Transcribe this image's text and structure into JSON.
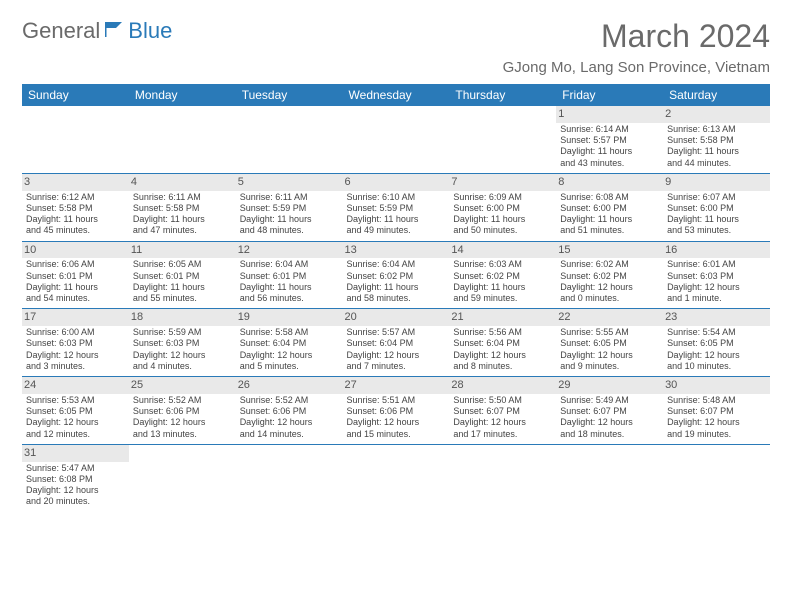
{
  "logo": {
    "general": "General",
    "blue": "Blue"
  },
  "title": "March 2024",
  "location": "GJong Mo, Lang Son Province, Vietnam",
  "colors": {
    "header_bg": "#2a7ab8",
    "header_text": "#ffffff",
    "daynum_bg": "#e9e9e9",
    "cell_border": "#2a7ab8",
    "text": "#444444",
    "title_color": "#6a6a6a"
  },
  "weekdays": [
    "Sunday",
    "Monday",
    "Tuesday",
    "Wednesday",
    "Thursday",
    "Friday",
    "Saturday"
  ],
  "grid": [
    [
      {
        "day": "",
        "lines": [
          "",
          "",
          "",
          ""
        ]
      },
      {
        "day": "",
        "lines": [
          "",
          "",
          "",
          ""
        ]
      },
      {
        "day": "",
        "lines": [
          "",
          "",
          "",
          ""
        ]
      },
      {
        "day": "",
        "lines": [
          "",
          "",
          "",
          ""
        ]
      },
      {
        "day": "",
        "lines": [
          "",
          "",
          "",
          ""
        ]
      },
      {
        "day": "1",
        "lines": [
          "Sunrise: 6:14 AM",
          "Sunset: 5:57 PM",
          "Daylight: 11 hours",
          "and 43 minutes."
        ]
      },
      {
        "day": "2",
        "lines": [
          "Sunrise: 6:13 AM",
          "Sunset: 5:58 PM",
          "Daylight: 11 hours",
          "and 44 minutes."
        ]
      }
    ],
    [
      {
        "day": "3",
        "lines": [
          "Sunrise: 6:12 AM",
          "Sunset: 5:58 PM",
          "Daylight: 11 hours",
          "and 45 minutes."
        ]
      },
      {
        "day": "4",
        "lines": [
          "Sunrise: 6:11 AM",
          "Sunset: 5:58 PM",
          "Daylight: 11 hours",
          "and 47 minutes."
        ]
      },
      {
        "day": "5",
        "lines": [
          "Sunrise: 6:11 AM",
          "Sunset: 5:59 PM",
          "Daylight: 11 hours",
          "and 48 minutes."
        ]
      },
      {
        "day": "6",
        "lines": [
          "Sunrise: 6:10 AM",
          "Sunset: 5:59 PM",
          "Daylight: 11 hours",
          "and 49 minutes."
        ]
      },
      {
        "day": "7",
        "lines": [
          "Sunrise: 6:09 AM",
          "Sunset: 6:00 PM",
          "Daylight: 11 hours",
          "and 50 minutes."
        ]
      },
      {
        "day": "8",
        "lines": [
          "Sunrise: 6:08 AM",
          "Sunset: 6:00 PM",
          "Daylight: 11 hours",
          "and 51 minutes."
        ]
      },
      {
        "day": "9",
        "lines": [
          "Sunrise: 6:07 AM",
          "Sunset: 6:00 PM",
          "Daylight: 11 hours",
          "and 53 minutes."
        ]
      }
    ],
    [
      {
        "day": "10",
        "lines": [
          "Sunrise: 6:06 AM",
          "Sunset: 6:01 PM",
          "Daylight: 11 hours",
          "and 54 minutes."
        ]
      },
      {
        "day": "11",
        "lines": [
          "Sunrise: 6:05 AM",
          "Sunset: 6:01 PM",
          "Daylight: 11 hours",
          "and 55 minutes."
        ]
      },
      {
        "day": "12",
        "lines": [
          "Sunrise: 6:04 AM",
          "Sunset: 6:01 PM",
          "Daylight: 11 hours",
          "and 56 minutes."
        ]
      },
      {
        "day": "13",
        "lines": [
          "Sunrise: 6:04 AM",
          "Sunset: 6:02 PM",
          "Daylight: 11 hours",
          "and 58 minutes."
        ]
      },
      {
        "day": "14",
        "lines": [
          "Sunrise: 6:03 AM",
          "Sunset: 6:02 PM",
          "Daylight: 11 hours",
          "and 59 minutes."
        ]
      },
      {
        "day": "15",
        "lines": [
          "Sunrise: 6:02 AM",
          "Sunset: 6:02 PM",
          "Daylight: 12 hours",
          "and 0 minutes."
        ]
      },
      {
        "day": "16",
        "lines": [
          "Sunrise: 6:01 AM",
          "Sunset: 6:03 PM",
          "Daylight: 12 hours",
          "and 1 minute."
        ]
      }
    ],
    [
      {
        "day": "17",
        "lines": [
          "Sunrise: 6:00 AM",
          "Sunset: 6:03 PM",
          "Daylight: 12 hours",
          "and 3 minutes."
        ]
      },
      {
        "day": "18",
        "lines": [
          "Sunrise: 5:59 AM",
          "Sunset: 6:03 PM",
          "Daylight: 12 hours",
          "and 4 minutes."
        ]
      },
      {
        "day": "19",
        "lines": [
          "Sunrise: 5:58 AM",
          "Sunset: 6:04 PM",
          "Daylight: 12 hours",
          "and 5 minutes."
        ]
      },
      {
        "day": "20",
        "lines": [
          "Sunrise: 5:57 AM",
          "Sunset: 6:04 PM",
          "Daylight: 12 hours",
          "and 7 minutes."
        ]
      },
      {
        "day": "21",
        "lines": [
          "Sunrise: 5:56 AM",
          "Sunset: 6:04 PM",
          "Daylight: 12 hours",
          "and 8 minutes."
        ]
      },
      {
        "day": "22",
        "lines": [
          "Sunrise: 5:55 AM",
          "Sunset: 6:05 PM",
          "Daylight: 12 hours",
          "and 9 minutes."
        ]
      },
      {
        "day": "23",
        "lines": [
          "Sunrise: 5:54 AM",
          "Sunset: 6:05 PM",
          "Daylight: 12 hours",
          "and 10 minutes."
        ]
      }
    ],
    [
      {
        "day": "24",
        "lines": [
          "Sunrise: 5:53 AM",
          "Sunset: 6:05 PM",
          "Daylight: 12 hours",
          "and 12 minutes."
        ]
      },
      {
        "day": "25",
        "lines": [
          "Sunrise: 5:52 AM",
          "Sunset: 6:06 PM",
          "Daylight: 12 hours",
          "and 13 minutes."
        ]
      },
      {
        "day": "26",
        "lines": [
          "Sunrise: 5:52 AM",
          "Sunset: 6:06 PM",
          "Daylight: 12 hours",
          "and 14 minutes."
        ]
      },
      {
        "day": "27",
        "lines": [
          "Sunrise: 5:51 AM",
          "Sunset: 6:06 PM",
          "Daylight: 12 hours",
          "and 15 minutes."
        ]
      },
      {
        "day": "28",
        "lines": [
          "Sunrise: 5:50 AM",
          "Sunset: 6:07 PM",
          "Daylight: 12 hours",
          "and 17 minutes."
        ]
      },
      {
        "day": "29",
        "lines": [
          "Sunrise: 5:49 AM",
          "Sunset: 6:07 PM",
          "Daylight: 12 hours",
          "and 18 minutes."
        ]
      },
      {
        "day": "30",
        "lines": [
          "Sunrise: 5:48 AM",
          "Sunset: 6:07 PM",
          "Daylight: 12 hours",
          "and 19 minutes."
        ]
      }
    ],
    [
      {
        "day": "31",
        "lines": [
          "Sunrise: 5:47 AM",
          "Sunset: 6:08 PM",
          "Daylight: 12 hours",
          "and 20 minutes."
        ]
      },
      {
        "day": "",
        "lines": [
          "",
          "",
          "",
          ""
        ]
      },
      {
        "day": "",
        "lines": [
          "",
          "",
          "",
          ""
        ]
      },
      {
        "day": "",
        "lines": [
          "",
          "",
          "",
          ""
        ]
      },
      {
        "day": "",
        "lines": [
          "",
          "",
          "",
          ""
        ]
      },
      {
        "day": "",
        "lines": [
          "",
          "",
          "",
          ""
        ]
      },
      {
        "day": "",
        "lines": [
          "",
          "",
          "",
          ""
        ]
      }
    ]
  ]
}
